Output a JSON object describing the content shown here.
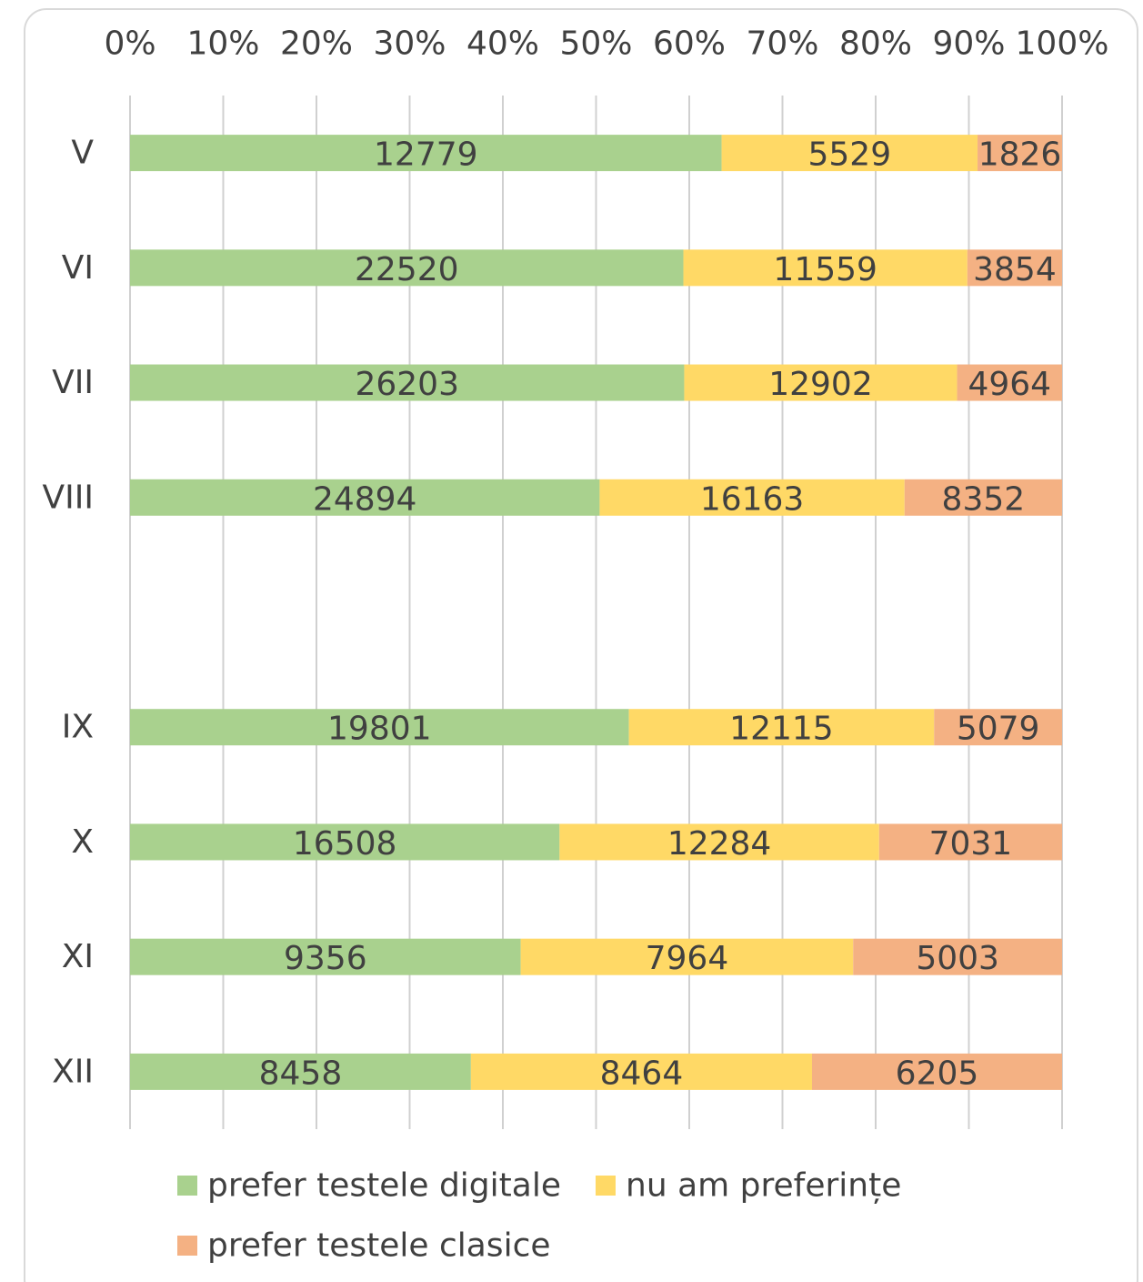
{
  "chart_data": {
    "type": "bar",
    "orientation": "horizontal",
    "stacking": "percent",
    "categories": [
      "V",
      "VI",
      "VII",
      "VIII",
      null,
      "IX",
      "X",
      "XI",
      "XII"
    ],
    "series": [
      {
        "name": "prefer testele digitale",
        "color": "#a9d18e",
        "values": [
          12779,
          22520,
          26203,
          24894,
          null,
          19801,
          16508,
          9356,
          8458
        ]
      },
      {
        "name": "nu am preferințe",
        "color": "#ffd966",
        "values": [
          5529,
          11559,
          12902,
          16163,
          null,
          12115,
          12284,
          7964,
          8464
        ]
      },
      {
        "name": "prefer testele clasice",
        "color": "#f4b183",
        "values": [
          1826,
          3854,
          4964,
          8352,
          null,
          5079,
          7031,
          5003,
          6205
        ]
      }
    ],
    "xlim": [
      0,
      100
    ],
    "xticks": [
      {
        "value": 0,
        "label": "0%"
      },
      {
        "value": 10,
        "label": "10%"
      },
      {
        "value": 20,
        "label": "20%"
      },
      {
        "value": 30,
        "label": "30%"
      },
      {
        "value": 40,
        "label": "40%"
      },
      {
        "value": 50,
        "label": "50%"
      },
      {
        "value": 60,
        "label": "60%"
      },
      {
        "value": 70,
        "label": "70%"
      },
      {
        "value": 80,
        "label": "80%"
      },
      {
        "value": 90,
        "label": "90%"
      },
      {
        "value": 100,
        "label": "100%"
      }
    ],
    "grid": true,
    "legend": "bottom"
  }
}
